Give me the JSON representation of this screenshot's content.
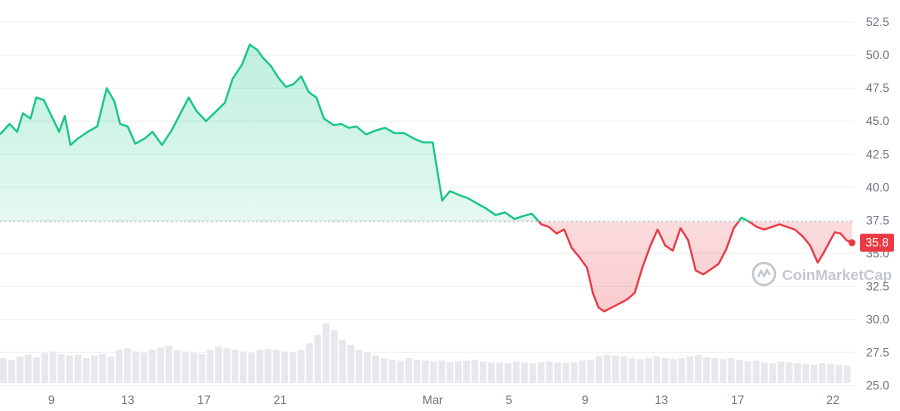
{
  "chart_data": {
    "type": "line",
    "title": "",
    "xlabel": "",
    "ylabel": "",
    "ylim": [
      24.5,
      53.8
    ],
    "y_ticks": [
      "52.5",
      "50.0",
      "47.5",
      "45.0",
      "42.5",
      "40.0",
      "37.5",
      "35.0",
      "32.5",
      "30.0",
      "27.5",
      "25.0"
    ],
    "x_ticks": [
      {
        "label": "9",
        "day": 9
      },
      {
        "label": "13",
        "day": 13
      },
      {
        "label": "17",
        "day": 17
      },
      {
        "label": "21",
        "day": 21
      },
      {
        "label": "Mar",
        "day": 29
      },
      {
        "label": "5",
        "day": 33
      },
      {
        "label": "9",
        "day": 37
      },
      {
        "label": "13",
        "day": 41
      },
      {
        "label": "17",
        "day": 45
      },
      {
        "label": "22",
        "day": 50
      }
    ],
    "x_range": [
      6.3,
      51.0
    ],
    "baseline": 37.4,
    "current_price": "35.8",
    "colors": {
      "up": "#16c784",
      "down": "#ea3943",
      "badge": "#ea3943",
      "volume": "#e6e8ec",
      "baseline": "#b0b5bd"
    },
    "grid": true,
    "series": [
      {
        "x": [
          6.3,
          6.8,
          7.2,
          7.5,
          7.9,
          8.2,
          8.6,
          9.0,
          9.4,
          9.7,
          10.0,
          10.4,
          10.9,
          11.4,
          11.9,
          12.3,
          12.6,
          13.0,
          13.4,
          13.9,
          14.3,
          14.8,
          15.3,
          15.7,
          16.2,
          16.6,
          17.1,
          17.6,
          18.1,
          18.5,
          19.0,
          19.4,
          19.8,
          20.1,
          20.5,
          20.9,
          21.3,
          21.7,
          22.1,
          22.5,
          22.9,
          23.3,
          23.8,
          24.2,
          24.6,
          25.0,
          25.5,
          26.0,
          26.5,
          27.0,
          27.5,
          28.0,
          28.5,
          29.0,
          29.5,
          29.9,
          30.1,
          30.4,
          30.8,
          31.3,
          31.8,
          32.3,
          32.8,
          33.3,
          33.7,
          34.2,
          34.7,
          35.1,
          35.5,
          35.9,
          36.3,
          36.7,
          37.1,
          37.4,
          37.7,
          38.0,
          38.4,
          38.8,
          39.2,
          39.6,
          40.0,
          40.4,
          40.8,
          41.2,
          41.6,
          42.0,
          42.4,
          42.8,
          43.2,
          43.6,
          44.0,
          44.4,
          44.8,
          45.2,
          45.6,
          46.0,
          46.4,
          46.8,
          47.2,
          47.6,
          48.0,
          48.4,
          48.8,
          49.2,
          49.5,
          49.8,
          50.1,
          50.4,
          50.7,
          51.0
        ],
        "values": [
          44.0,
          44.8,
          44.2,
          45.6,
          45.2,
          46.8,
          46.6,
          45.4,
          44.2,
          45.4,
          43.2,
          43.7,
          44.2,
          44.6,
          47.5,
          46.5,
          44.8,
          44.6,
          43.3,
          43.7,
          44.2,
          43.2,
          44.3,
          45.4,
          46.8,
          45.8,
          45.0,
          45.7,
          46.4,
          48.2,
          49.3,
          50.8,
          50.4,
          49.8,
          49.2,
          48.3,
          47.6,
          47.8,
          48.4,
          47.2,
          46.8,
          45.2,
          44.7,
          44.8,
          44.5,
          44.6,
          44.0,
          44.3,
          44.5,
          44.1,
          44.1,
          43.7,
          43.4,
          43.4,
          39.0,
          39.7,
          39.6,
          39.4,
          39.2,
          38.8,
          38.4,
          37.9,
          38.1,
          37.6,
          37.8,
          38.0,
          37.2,
          37.0,
          36.5,
          36.8,
          35.4,
          34.7,
          33.9,
          32.0,
          30.9,
          30.6,
          30.9,
          31.2,
          31.5,
          32.0,
          33.9,
          35.5,
          36.8,
          35.6,
          35.2,
          36.9,
          36.0,
          33.7,
          33.4,
          33.8,
          34.2,
          35.3,
          36.9,
          37.7,
          37.4,
          37.0,
          36.8,
          37.0,
          37.2,
          37.0,
          36.8,
          36.3,
          35.6,
          34.3,
          35.0,
          35.8,
          36.6,
          36.5,
          36.0,
          35.8
        ]
      }
    ],
    "volume": [
      0.3,
      0.28,
      0.32,
      0.34,
      0.31,
      0.36,
      0.38,
      0.35,
      0.33,
      0.34,
      0.3,
      0.33,
      0.35,
      0.32,
      0.4,
      0.42,
      0.38,
      0.36,
      0.4,
      0.43,
      0.45,
      0.4,
      0.38,
      0.36,
      0.35,
      0.4,
      0.44,
      0.42,
      0.4,
      0.38,
      0.36,
      0.4,
      0.41,
      0.4,
      0.38,
      0.37,
      0.4,
      0.48,
      0.58,
      0.72,
      0.64,
      0.52,
      0.46,
      0.4,
      0.37,
      0.33,
      0.3,
      0.28,
      0.27,
      0.3,
      0.28,
      0.27,
      0.26,
      0.27,
      0.25,
      0.26,
      0.27,
      0.28,
      0.26,
      0.25,
      0.25,
      0.24,
      0.26,
      0.25,
      0.24,
      0.25,
      0.26,
      0.25,
      0.24,
      0.25,
      0.27,
      0.28,
      0.32,
      0.34,
      0.33,
      0.32,
      0.3,
      0.29,
      0.3,
      0.32,
      0.3,
      0.29,
      0.3,
      0.32,
      0.34,
      0.31,
      0.3,
      0.29,
      0.3,
      0.28,
      0.26,
      0.27,
      0.25,
      0.24,
      0.26,
      0.25,
      0.24,
      0.23,
      0.22,
      0.24,
      0.23,
      0.22,
      0.21
    ]
  },
  "watermark": {
    "name": "CoinMarketCap",
    "icon": "coinmarketcap-logo-icon"
  }
}
